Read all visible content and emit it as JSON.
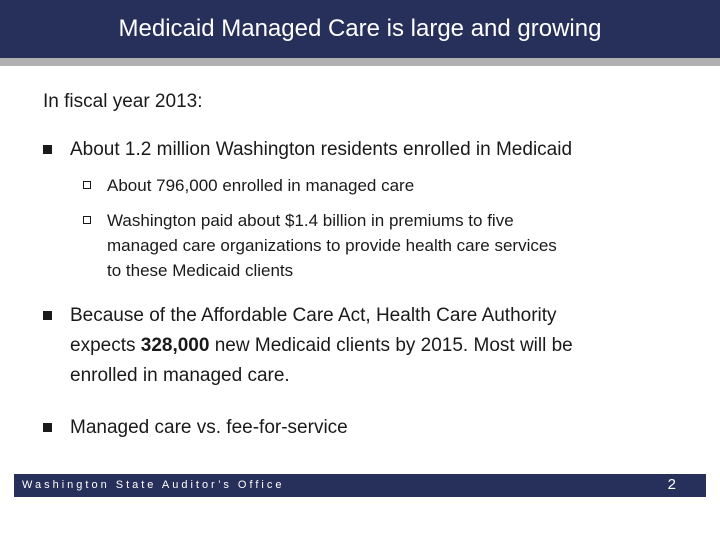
{
  "header": {
    "title": "Medicaid Managed Care is large and growing"
  },
  "body": {
    "intro": "In fiscal year 2013:",
    "bullet1": "About 1.2 million Washington residents enrolled in Medicaid",
    "sub1": "About 796,000 enrolled in managed care",
    "sub2_line1": "Washington paid about $1.4 billion in premiums to five",
    "sub2_line2": "managed care organizations to provide health care services",
    "sub2_line3": "to these Medicaid clients",
    "bullet2_line1": "Because of the Affordable Care Act, Health Care Authority",
    "bullet2_pre": "expects ",
    "bullet2_bold": "328,000",
    "bullet2_post": " new Medicaid clients by 2015.  Most will be",
    "bullet2_line3": "enrolled in managed care.",
    "bullet3": "Managed care vs. fee-for-service"
  },
  "footer": {
    "organization": "Washington State Auditor’s Office",
    "page_number": "2"
  }
}
